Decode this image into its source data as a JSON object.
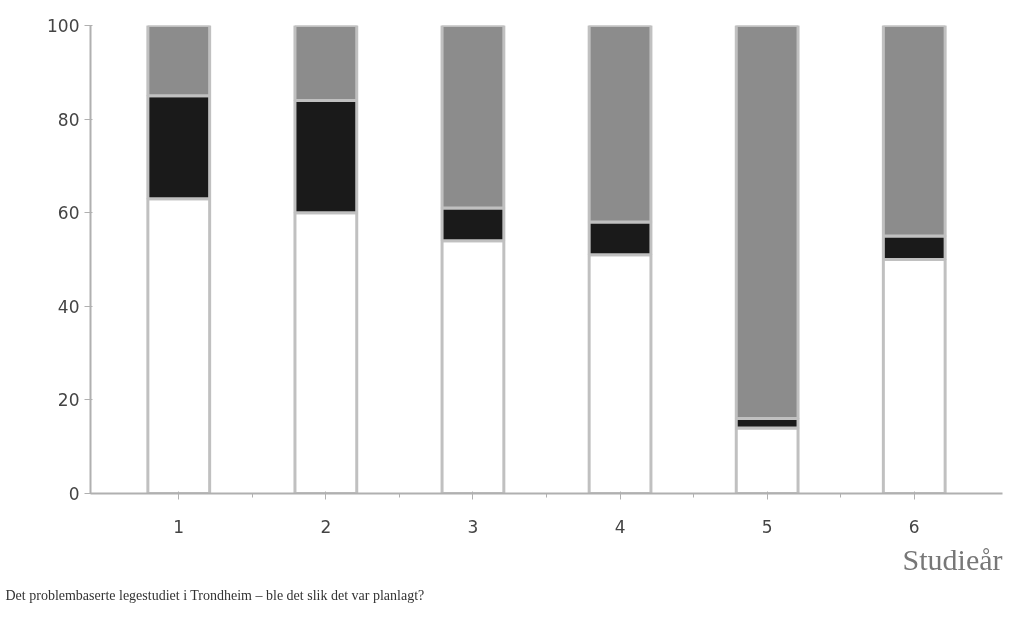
{
  "chart_data": {
    "type": "bar",
    "stacked": true,
    "xlabel": "Studieår",
    "categories": [
      "1",
      "2",
      "3",
      "4",
      "5",
      "6"
    ],
    "series": [
      {
        "color": "#ffffff",
        "values": [
          63,
          60,
          54,
          51,
          14,
          50
        ]
      },
      {
        "color": "#1a1a1a",
        "values": [
          22,
          24,
          7,
          7,
          2,
          5
        ]
      },
      {
        "color": "#8c8c8c",
        "values": [
          15,
          16,
          39,
          42,
          84,
          45
        ]
      }
    ],
    "ylim": [
      0,
      100
    ],
    "yticks": [
      0,
      20,
      40,
      60,
      80,
      100
    ],
    "grid": false,
    "annotations": [
      "Det problembaserte legestudiet i Trondheim – ble det slik det var planlagt?"
    ]
  }
}
